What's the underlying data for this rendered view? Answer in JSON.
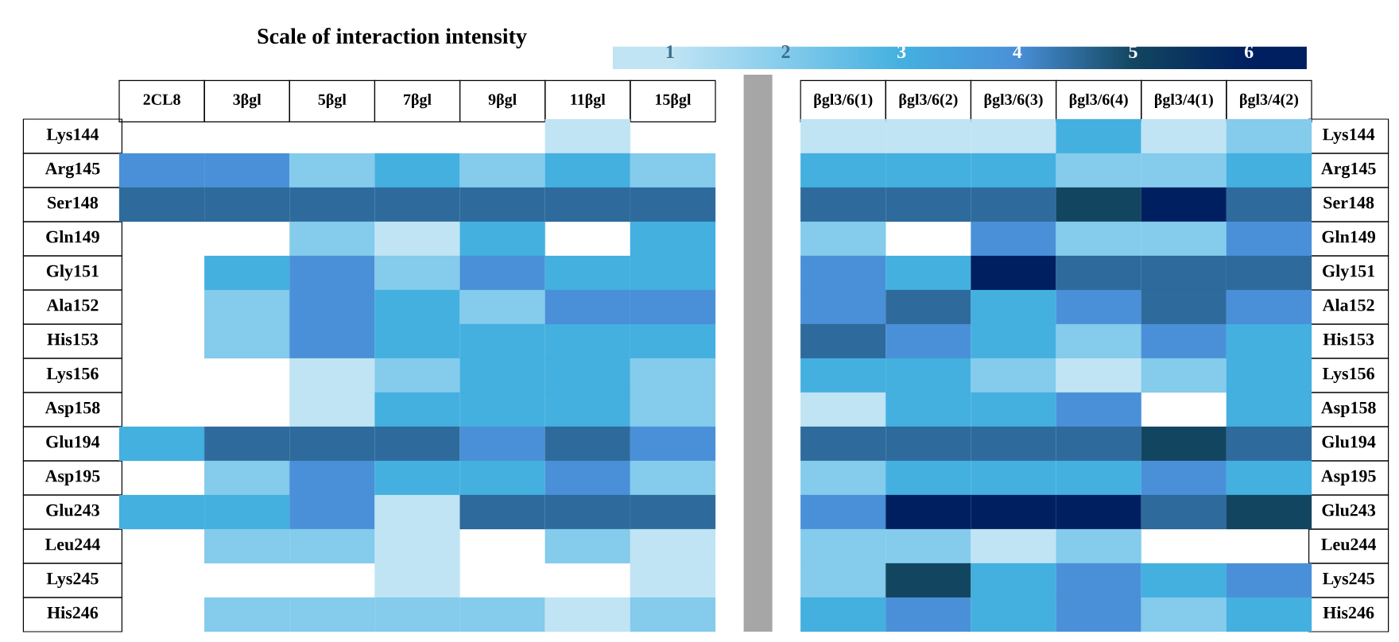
{
  "chart_data": {
    "type": "heatmap",
    "clabel": "Scale of interaction intensity",
    "clim": [
      0.5,
      6.5
    ],
    "cticks": [
      1,
      2,
      3,
      4,
      5,
      6
    ],
    "categories": [
      "2CL8",
      "3βgl",
      "5βgl",
      "7βgl",
      "9βgl",
      "11βgl",
      "15βgl",
      null,
      "βgl3/6(1)",
      "βgl3/6(2)",
      "βgl3/6(3)",
      "βgl3/6(4)",
      "βgl3/4(1)",
      "βgl3/4(2)"
    ],
    "y_categories": [
      "Lys144",
      "Arg145",
      "Ser148",
      "Gln149",
      "Gly151",
      "Ala152",
      "His153",
      "Lys156",
      "Asp158",
      "Glu194",
      "Asp195",
      "Glu243",
      "Leu244",
      "Lys245",
      "His246"
    ],
    "y2_categories": [
      "Lys144",
      "Arg145",
      "Ser148",
      "Gln149",
      "Gly151",
      "Ala152",
      "His153",
      "Lys156",
      "Asp158",
      "Glu194",
      "Asp195",
      "Glu243",
      "Leu244",
      "Lys245",
      "His246"
    ],
    "cells": [
      [
        null,
        null,
        null,
        null,
        null,
        1,
        null,
        null,
        1,
        1,
        1,
        3,
        1,
        2
      ],
      [
        4,
        4,
        2,
        3,
        2,
        3,
        2,
        null,
        3,
        3,
        3,
        2,
        2,
        3
      ],
      [
        4.5,
        4.5,
        4.5,
        4.5,
        4.5,
        4.5,
        4.5,
        null,
        4.5,
        4.5,
        4.5,
        5,
        6,
        4.5
      ],
      [
        null,
        null,
        2,
        1,
        3,
        null,
        3,
        null,
        2,
        null,
        4,
        2,
        2,
        4
      ],
      [
        null,
        3,
        4,
        2,
        4,
        3,
        3,
        null,
        4,
        3,
        6,
        4.5,
        4.5,
        4.5
      ],
      [
        null,
        2,
        4,
        3,
        2,
        4,
        4,
        null,
        4,
        4.5,
        3,
        4,
        4.5,
        4
      ],
      [
        null,
        2,
        4,
        3,
        3,
        3,
        3,
        null,
        4.5,
        4,
        3,
        2,
        4,
        3
      ],
      [
        null,
        null,
        1,
        2,
        3,
        3,
        2,
        null,
        3,
        3,
        2,
        1,
        2,
        3
      ],
      [
        null,
        null,
        1,
        3,
        3,
        3,
        2,
        null,
        1,
        3,
        3,
        4,
        null,
        3
      ],
      [
        3,
        4.5,
        4.5,
        4.5,
        4,
        4.5,
        4,
        null,
        4.5,
        4.5,
        4.5,
        4.5,
        5,
        4.5
      ],
      [
        null,
        2,
        4,
        3,
        3,
        4,
        2,
        null,
        2,
        3,
        3,
        3,
        4,
        3
      ],
      [
        3,
        3,
        4,
        1,
        4.5,
        4.5,
        4.5,
        null,
        4,
        6,
        6,
        6,
        4.5,
        5
      ],
      [
        null,
        2,
        2,
        1,
        null,
        2,
        1,
        null,
        2,
        2,
        1,
        2,
        null,
        null
      ],
      [
        null,
        null,
        null,
        1,
        null,
        null,
        1,
        null,
        2,
        5,
        3,
        4,
        3,
        4
      ],
      [
        null,
        2,
        2,
        2,
        2,
        1,
        2,
        null,
        3,
        4,
        3,
        4,
        2,
        3
      ]
    ]
  }
}
